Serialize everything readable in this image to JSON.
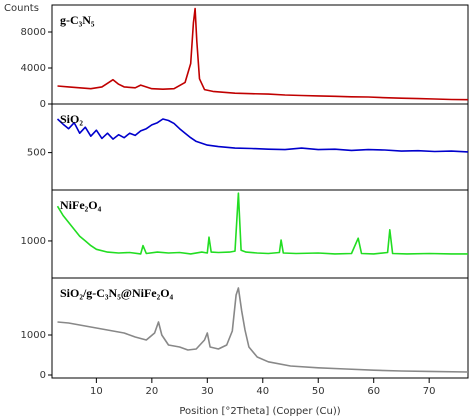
{
  "chart_data": [
    {
      "type": "line",
      "y_label": "Counts",
      "label": "g-C₃N₅",
      "color": "#c00000",
      "xlim": [
        2,
        77
      ],
      "ylim": [
        0,
        11000
      ],
      "yticks": [
        0,
        4000,
        8000
      ],
      "x": [
        3,
        5,
        7,
        9,
        11,
        12,
        13,
        14,
        15,
        17,
        18,
        20,
        22,
        24,
        26,
        27,
        27.5,
        27.8,
        28.1,
        28.6,
        29.5,
        31,
        33,
        35,
        38,
        41,
        44,
        47,
        50,
        53,
        56,
        59,
        62,
        65,
        68,
        71,
        74,
        77
      ],
      "values": [
        2000,
        1900,
        1800,
        1700,
        1900,
        2300,
        2700,
        2200,
        1900,
        1800,
        2100,
        1700,
        1650,
        1700,
        2400,
        4500,
        9000,
        10600,
        7000,
        2800,
        1600,
        1400,
        1300,
        1200,
        1150,
        1100,
        1000,
        950,
        900,
        850,
        800,
        780,
        700,
        650,
        600,
        550,
        500,
        480
      ]
    },
    {
      "type": "line",
      "label": "SiO₂",
      "color": "#0000cc",
      "xlim": [
        2,
        77
      ],
      "ylim": [
        0,
        1150
      ],
      "yticks": [
        500
      ],
      "x": [
        3,
        4,
        5,
        6,
        7,
        8,
        9,
        10,
        11,
        12,
        13,
        14,
        15,
        16,
        17,
        18,
        19,
        20,
        21,
        22,
        23,
        24,
        25,
        26,
        27,
        28,
        30,
        32,
        35,
        38,
        41,
        44,
        47,
        50,
        53,
        56,
        59,
        62,
        65,
        68,
        71,
        74,
        77
      ],
      "values": [
        950,
        880,
        820,
        900,
        760,
        840,
        720,
        800,
        690,
        760,
        680,
        740,
        700,
        760,
        730,
        790,
        820,
        870,
        900,
        950,
        930,
        890,
        820,
        760,
        700,
        650,
        600,
        580,
        560,
        555,
        545,
        540,
        560,
        540,
        545,
        530,
        540,
        535,
        520,
        525,
        515,
        520,
        510
      ]
    },
    {
      "type": "line",
      "label": "NiFe₂O₄",
      "color": "#22dd22",
      "xlim": [
        2,
        77
      ],
      "ylim": [
        200,
        2100
      ],
      "yticks": [
        1000
      ],
      "x": [
        3,
        4,
        5,
        6,
        7,
        8,
        9,
        10,
        12,
        14,
        16,
        18,
        18.4,
        19,
        21,
        23,
        25,
        27,
        29,
        30,
        30.3,
        30.7,
        32,
        34,
        35,
        35.6,
        36.1,
        37,
        39,
        41,
        43,
        43.3,
        43.7,
        46,
        50,
        53,
        56,
        57.2,
        57.8,
        60,
        62.5,
        62.9,
        63.4,
        66,
        70,
        74,
        77
      ],
      "values": [
        1750,
        1550,
        1400,
        1250,
        1100,
        1000,
        900,
        820,
        760,
        740,
        750,
        720,
        900,
        730,
        760,
        740,
        750,
        720,
        760,
        740,
        1080,
        760,
        750,
        760,
        780,
        2030,
        800,
        760,
        740,
        730,
        750,
        1020,
        740,
        730,
        740,
        720,
        730,
        1060,
        730,
        720,
        750,
        1240,
        730,
        720,
        730,
        720,
        720
      ]
    },
    {
      "type": "line",
      "label": "SiO₂/g-C₃N₅@NiFe₂O₄",
      "color": "#888888",
      "xlim": [
        2,
        77
      ],
      "ylim": [
        -75,
        2425
      ],
      "yticks": [
        0,
        1000
      ],
      "xticks": [
        10,
        20,
        30,
        40,
        50,
        60,
        70
      ],
      "x_label": "Position [°2Theta] (Copper (Cu))",
      "x": [
        3,
        5,
        7,
        9,
        11,
        13,
        15,
        17,
        19,
        20.5,
        21.2,
        21.8,
        23,
        25,
        26.5,
        28,
        29.5,
        30,
        30.5,
        32,
        33.5,
        34.5,
        35.2,
        35.6,
        36.2,
        36.8,
        37.5,
        39,
        41,
        45,
        50,
        55,
        60,
        65,
        70,
        77
      ],
      "values": [
        1325,
        1300,
        1250,
        1200,
        1150,
        1100,
        1050,
        950,
        875,
        1050,
        1325,
        1000,
        750,
        700,
        625,
        650,
        875,
        1050,
        700,
        650,
        750,
        1100,
        2000,
        2175,
        1600,
        1125,
        700,
        450,
        330,
        225,
        180,
        150,
        120,
        100,
        90,
        75
      ]
    }
  ]
}
